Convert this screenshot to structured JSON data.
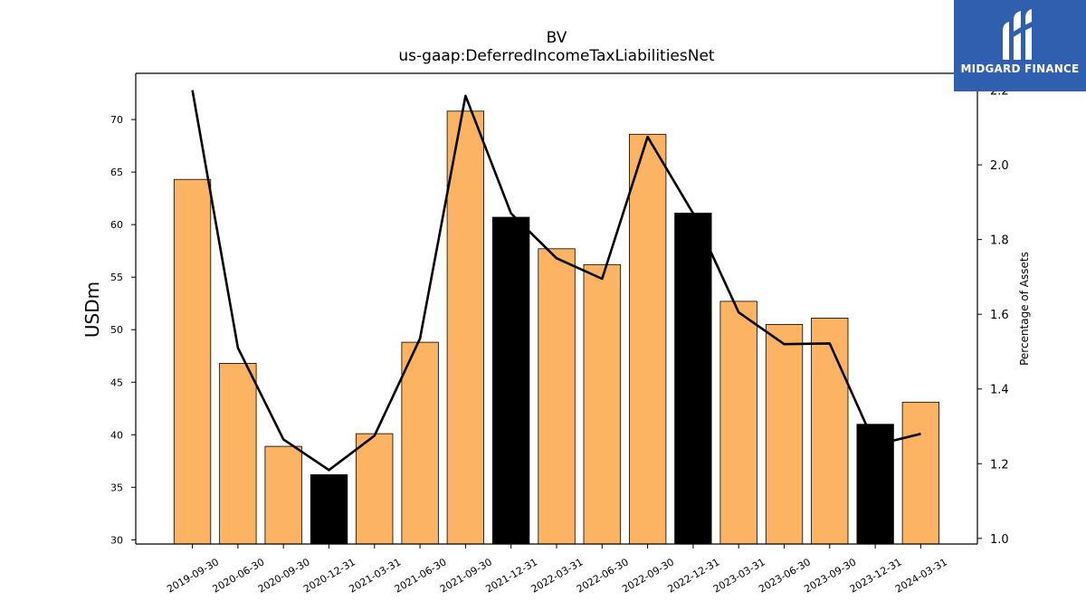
{
  "brand": {
    "name": "MIDGARD FINANCE",
    "bg": "#2f5fae"
  },
  "chart_data": {
    "type": "bar",
    "title": "BV",
    "subtitle": "us-gaap:DeferredIncomeTaxLiabilitiesNet",
    "ylabel": "USDm",
    "y2label": "Percentage of Assets",
    "ylim": [
      29.6,
      74.4
    ],
    "y2lim": [
      0.985,
      2.245
    ],
    "yticks": [
      30,
      35,
      40,
      45,
      50,
      55,
      60,
      65,
      70
    ],
    "y2ticks": [
      1.0,
      1.2,
      1.4,
      1.6,
      1.8,
      2.0,
      2.2
    ],
    "categories": [
      "2019-09-30",
      "2020-06-30",
      "2020-09-30",
      "2020-12-31",
      "2021-03-31",
      "2021-06-30",
      "2021-09-30",
      "2021-12-31",
      "2022-03-31",
      "2022-06-30",
      "2022-09-30",
      "2022-12-31",
      "2023-03-31",
      "2023-06-30",
      "2023-09-30",
      "2023-12-31",
      "2024-03-31"
    ],
    "series": [
      {
        "type": "bar",
        "axis": "left",
        "values": [
          64.3,
          46.8,
          38.9,
          36.2,
          40.1,
          48.8,
          70.8,
          60.7,
          57.7,
          56.2,
          68.6,
          61.1,
          52.7,
          50.5,
          51.1,
          41.0,
          43.1
        ]
      },
      {
        "type": "line",
        "axis": "right",
        "values": [
          2.2,
          1.51,
          1.265,
          1.183,
          1.275,
          1.535,
          2.185,
          1.87,
          1.75,
          1.695,
          2.075,
          1.87,
          1.605,
          1.52,
          1.522,
          1.25,
          1.28
        ]
      }
    ],
    "bar_colors": [
      "#fdb462",
      "#fdb462",
      "#fdb462",
      "#000000",
      "#fdb462",
      "#fdb462",
      "#fdb462",
      "#000000",
      "#fdb462",
      "#fdb462",
      "#fdb462",
      "#000000",
      "#fdb462",
      "#fdb462",
      "#fdb462",
      "#000000",
      "#fdb462"
    ],
    "line_color": "#000000",
    "grid": false,
    "legend": "none"
  }
}
